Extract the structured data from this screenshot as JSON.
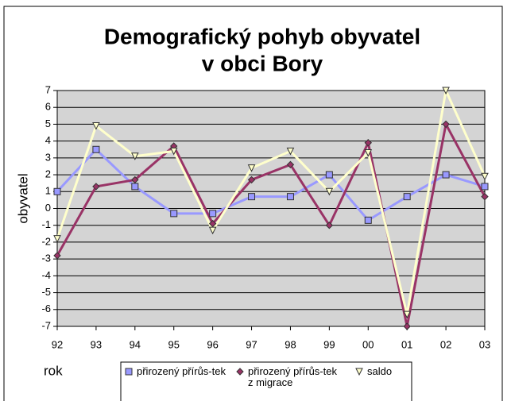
{
  "chart_data": {
    "type": "line",
    "title": "Demografický pohyb obyvatel",
    "subtitle": "v obci Bory",
    "y_label": "obyvatel",
    "x_label": "rok",
    "categories": [
      "92",
      "93",
      "94",
      "95",
      "96",
      "97",
      "98",
      "99",
      "00",
      "01",
      "02",
      "03"
    ],
    "series": [
      {
        "name": "přirozený přírůs-tek",
        "color": "#9999ff",
        "marker": "square",
        "values": [
          1,
          3.5,
          1.3,
          -0.3,
          -0.3,
          0.7,
          0.7,
          2,
          -0.7,
          0.7,
          2,
          1.3
        ]
      },
      {
        "name": "přirozený přírůs-tek z migrace",
        "color": "#993366",
        "marker": "diamond",
        "values": [
          -2.8,
          1.3,
          1.7,
          3.7,
          -0.9,
          1.7,
          2.6,
          -1,
          3.9,
          -7,
          5,
          0.7
        ]
      },
      {
        "name": "saldo",
        "color": "#ffffcc",
        "marker": "triangle",
        "values": [
          -1.8,
          4.9,
          3.1,
          3.4,
          -1.3,
          2.4,
          3.4,
          1,
          3.3,
          -6.3,
          7,
          1.9
        ]
      }
    ],
    "ylim": [
      -7,
      7
    ],
    "yticks": [
      -7,
      -6,
      -5,
      -4,
      -3,
      -2,
      -1,
      0,
      1,
      2,
      3,
      4,
      5,
      6,
      7
    ],
    "grid": true,
    "background": "#d4d4d4",
    "legend": "bottom"
  }
}
